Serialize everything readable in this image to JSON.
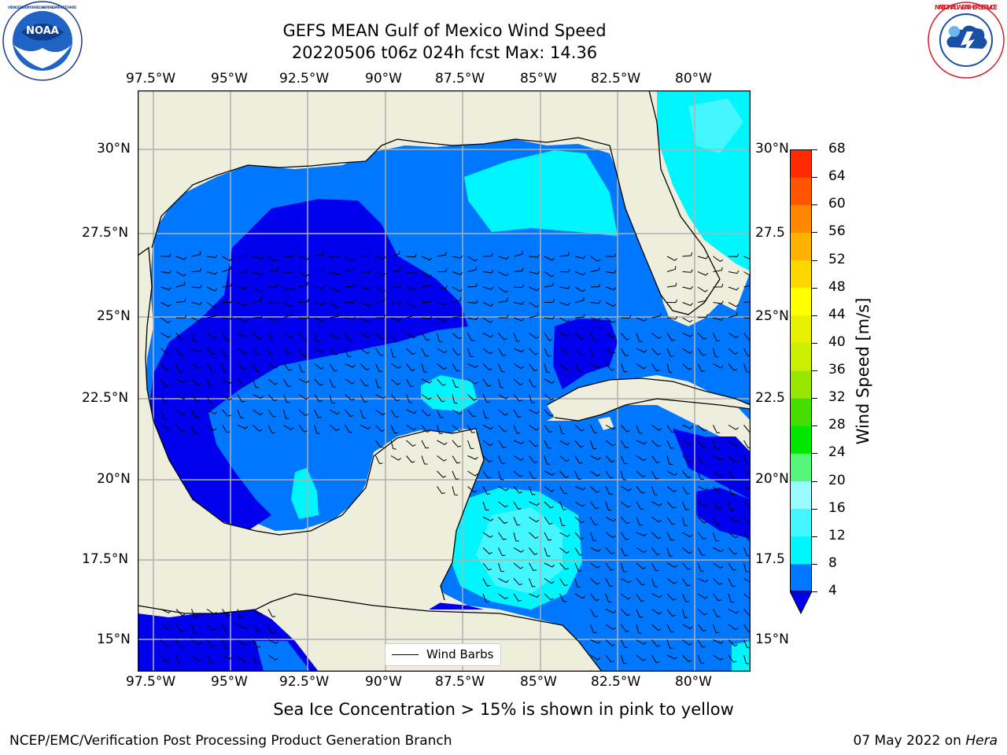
{
  "title": {
    "line1": "GEFS MEAN Gulf of Mexico Wind Speed",
    "line2": "20220506 t06z 024h fcst   Max: 14.36"
  },
  "logos": {
    "left": "noaa-logo",
    "left_text": "NOAA",
    "left_ring_text": "NATIONAL OCEANIC AND ATMOSPHERIC ADMINISTRATION · U.S. DEPARTMENT OF COMMERCE",
    "right": "nws-logo",
    "right_ring_text": "NATIONAL WEATHER SERVICE"
  },
  "map": {
    "lon_ticks": [
      "97.5°W",
      "95°W",
      "92.5°W",
      "90°W",
      "87.5°W",
      "85°W",
      "82.5°W",
      "80°W"
    ],
    "lat_ticks_left": [
      "30°N",
      "27.5°N",
      "25°N",
      "22.5°N",
      "20°N",
      "17.5°N",
      "15°N"
    ],
    "lat_ticks_right": [
      "30°N",
      "27.5",
      "25°N",
      "22.5",
      "20°N",
      "17.5",
      "15°N"
    ],
    "legend_label": "Wind Barbs",
    "colors": {
      "land": "#efeddc",
      "c4": "#0077ff",
      "c0": "#0000ee",
      "c8": "#00f6ff",
      "c12": "#44f6ff",
      "c16": "#88f8ff",
      "gridline": "#b0b0b0"
    }
  },
  "colorbar": {
    "title": "Wind Speed [m/s]",
    "levels": [
      "4",
      "8",
      "12",
      "16",
      "20",
      "24",
      "28",
      "32",
      "36",
      "40",
      "44",
      "48",
      "52",
      "56",
      "60",
      "64",
      "68"
    ],
    "colors": [
      "#0077ff",
      "#00f6ff",
      "#44f6ff",
      "#99fcff",
      "#55f57a",
      "#00e800",
      "#44dd00",
      "#99e600",
      "#ccee00",
      "#e6f000",
      "#ffff00",
      "#ffd700",
      "#ffb000",
      "#ff8800",
      "#ff5500",
      "#ff2800"
    ],
    "under_color": "#0000ee"
  },
  "caption": "Sea Ice Concentration > 15% is shown in pink to yellow",
  "credit": "NCEP/EMC/Verification Post Processing Product Generation Branch",
  "date": {
    "text": "07 May 2022 on ",
    "machine": "Hera"
  }
}
